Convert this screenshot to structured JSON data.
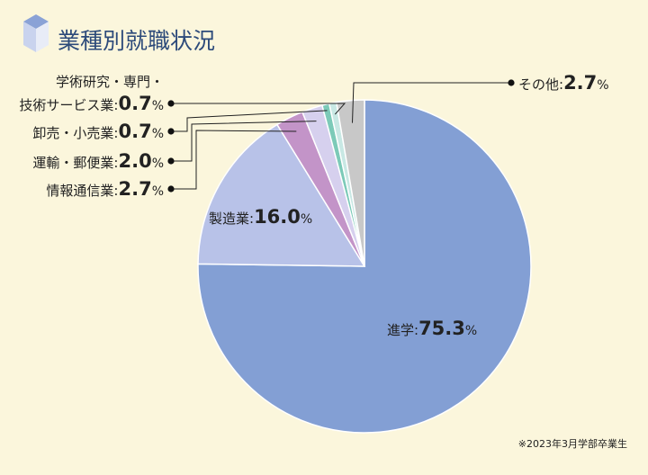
{
  "title": "業種別就職状況",
  "note": "※2023年3月学部卒業生",
  "chart_data": {
    "type": "pie",
    "unit": "%",
    "slices": [
      {
        "name": "進学",
        "value": 75.3,
        "color": "#839fd4",
        "display": "75.3"
      },
      {
        "name": "製造業",
        "value": 16.0,
        "color": "#b8c2e8",
        "display": "16.0"
      },
      {
        "name": "情報通信業",
        "value": 2.7,
        "color": "#c394c8",
        "display": "2.7"
      },
      {
        "name": "運輸・郵便業",
        "value": 2.0,
        "color": "#d6d0ee",
        "display": "2.0"
      },
      {
        "name": "卸売・小売業",
        "value": 0.7,
        "color": "#7ccab8",
        "display": "0.7"
      },
      {
        "name": "学術研究・専門・技術サービス業",
        "value": 0.7,
        "color": "#c8e8e4",
        "display": "0.7"
      },
      {
        "name": "その他",
        "value": 2.7,
        "color": "#c8c8c8",
        "display": "2.7"
      }
    ],
    "labels": {
      "jutsu_line1": "学術研究・専門・",
      "jutsu_line2": "技術サービス業"
    }
  }
}
